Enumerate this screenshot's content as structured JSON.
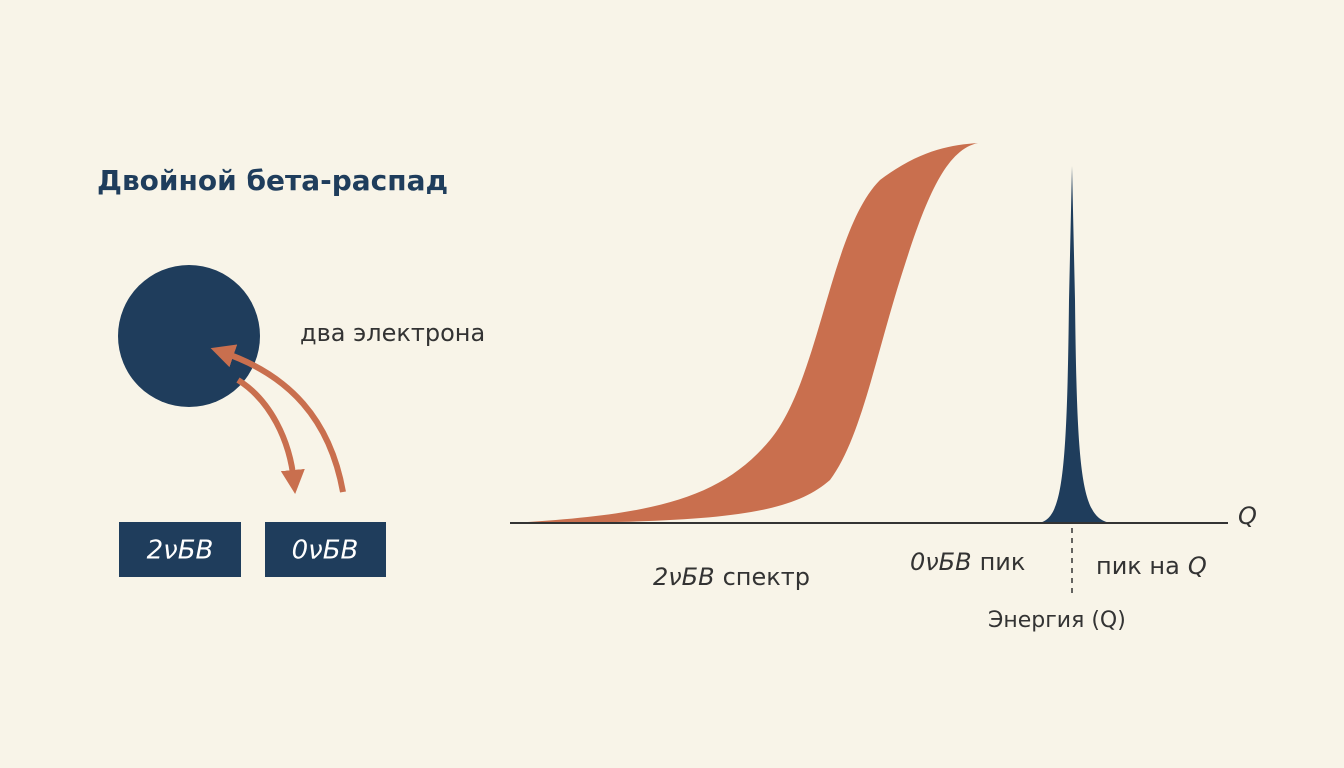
{
  "title": "Двойной бета-распад",
  "nucleus": {
    "label": "два электрона"
  },
  "boxes": [
    {
      "label": "2νБВ"
    },
    {
      "label": "0νБВ"
    }
  ],
  "spectrum": {
    "axis_label": "Q",
    "energy_label": "Энергия (Q)",
    "two_nu": {
      "symbol": "2νБВ",
      "text": "спектр"
    },
    "zero_nu": {
      "symbol": "0νБВ",
      "text": "пик"
    },
    "q_peak": {
      "text": "пик на",
      "symbol": "Q"
    }
  }
}
